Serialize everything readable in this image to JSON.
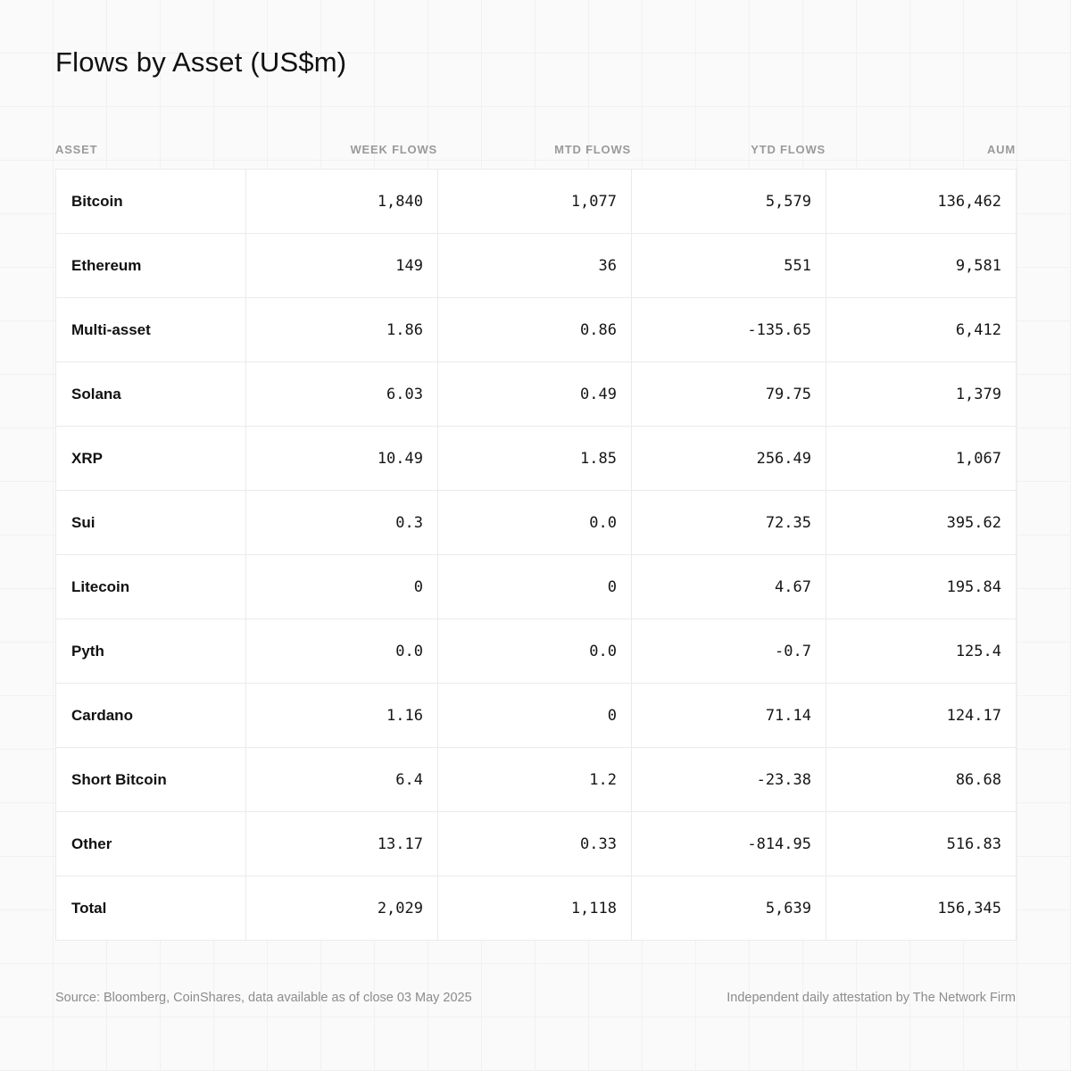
{
  "page": {
    "title": "Flows by Asset (US$m)"
  },
  "table": {
    "columns": {
      "asset": "Asset",
      "week": "Week Flows",
      "mtd": "MTD Flows",
      "ytd": "YTD Flows",
      "aum": "AUM"
    },
    "rows": [
      {
        "asset": "Bitcoin",
        "week": "1,840",
        "mtd": "1,077",
        "ytd": "5,579",
        "aum": "136,462"
      },
      {
        "asset": "Ethereum",
        "week": "149",
        "mtd": "36",
        "ytd": "551",
        "aum": "9,581"
      },
      {
        "asset": "Multi-asset",
        "week": "1.86",
        "mtd": "0.86",
        "ytd": "-135.65",
        "aum": "6,412"
      },
      {
        "asset": "Solana",
        "week": "6.03",
        "mtd": "0.49",
        "ytd": "79.75",
        "aum": "1,379"
      },
      {
        "asset": "XRP",
        "week": "10.49",
        "mtd": "1.85",
        "ytd": "256.49",
        "aum": "1,067"
      },
      {
        "asset": "Sui",
        "week": "0.3",
        "mtd": "0.0",
        "ytd": "72.35",
        "aum": "395.62"
      },
      {
        "asset": "Litecoin",
        "week": "0",
        "mtd": "0",
        "ytd": "4.67",
        "aum": "195.84"
      },
      {
        "asset": "Pyth",
        "week": "0.0",
        "mtd": "0.0",
        "ytd": "-0.7",
        "aum": "125.4"
      },
      {
        "asset": "Cardano",
        "week": "1.16",
        "mtd": "0",
        "ytd": "71.14",
        "aum": "124.17"
      },
      {
        "asset": "Short Bitcoin",
        "week": "6.4",
        "mtd": "1.2",
        "ytd": "-23.38",
        "aum": "86.68"
      },
      {
        "asset": "Other",
        "week": "13.17",
        "mtd": "0.33",
        "ytd": "-814.95",
        "aum": "516.83"
      },
      {
        "asset": "Total",
        "week": "2,029",
        "mtd": "1,118",
        "ytd": "5,639",
        "aum": "156,345"
      }
    ]
  },
  "footer": {
    "source": "Source: Bloomberg, CoinShares, data available as of close 03 May 2025",
    "attestation": "Independent daily attestation by The Network Firm"
  },
  "chart_data": {
    "type": "table",
    "title": "Flows by Asset (US$m)",
    "columns": [
      "Asset",
      "Week Flows",
      "MTD Flows",
      "YTD Flows",
      "AUM"
    ],
    "rows": [
      [
        "Bitcoin",
        1840,
        1077,
        5579,
        136462
      ],
      [
        "Ethereum",
        149,
        36,
        551,
        9581
      ],
      [
        "Multi-asset",
        1.86,
        0.86,
        -135.65,
        6412
      ],
      [
        "Solana",
        6.03,
        0.49,
        79.75,
        1379
      ],
      [
        "XRP",
        10.49,
        1.85,
        256.49,
        1067
      ],
      [
        "Sui",
        0.3,
        0.0,
        72.35,
        395.62
      ],
      [
        "Litecoin",
        0,
        0,
        4.67,
        195.84
      ],
      [
        "Pyth",
        0.0,
        0.0,
        -0.7,
        125.4
      ],
      [
        "Cardano",
        1.16,
        0,
        71.14,
        124.17
      ],
      [
        "Short Bitcoin",
        6.4,
        1.2,
        -23.38,
        86.68
      ],
      [
        "Other",
        13.17,
        0.33,
        -814.95,
        516.83
      ],
      [
        "Total",
        2029,
        1118,
        5639,
        156345
      ]
    ]
  }
}
